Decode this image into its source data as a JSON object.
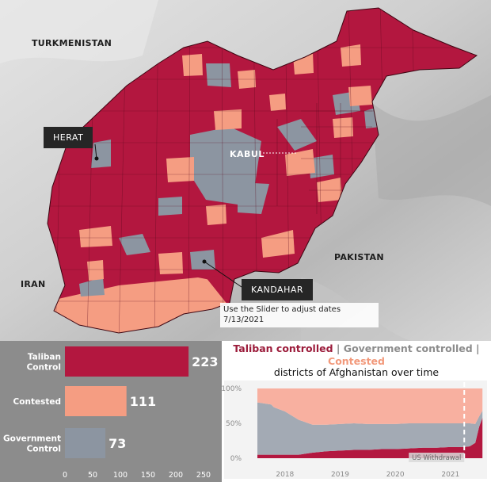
{
  "map": {
    "labels": {
      "turkmenistan": "TURKMENISTAN",
      "iran": "IRAN",
      "pakistan": "PAKISTAN",
      "kabul": "KABUL",
      "herat": "HERAT",
      "kandahar": "KANDAHAR"
    },
    "legend_colors": {
      "taliban": "#b3173f",
      "contested": "#f59d82",
      "government": "#8c95a1"
    },
    "slider_hint": "Use the Slider to adjust dates",
    "date": "7/13/2021"
  },
  "chart_data": [
    {
      "type": "bar",
      "orientation": "horizontal",
      "categories": [
        "Taliban Control",
        "Contested",
        "Government Control"
      ],
      "category_lines": [
        [
          "Taliban",
          "Control"
        ],
        [
          "Contested"
        ],
        [
          "Government",
          "Control"
        ]
      ],
      "values": [
        223,
        111,
        73
      ],
      "value_labels": [
        "223",
        "111",
        "73"
      ],
      "colors": [
        "#b3173f",
        "#f59d82",
        "#8c95a1"
      ],
      "xlim": [
        0,
        250
      ],
      "xticks": [
        "0",
        "50",
        "100",
        "150",
        "200",
        "250"
      ]
    },
    {
      "type": "area",
      "stacked": "percent",
      "title_parts": [
        "Taliban controlled",
        "|",
        "Government controlled",
        "|",
        "Contested"
      ],
      "title_colors": [
        "#9b1b3a",
        "#888888",
        "#8c8c8c",
        "#888888",
        "#f2997b"
      ],
      "subtitle": "districts of Afghanistan over time",
      "x": [
        2017.5,
        2017.75,
        2017.8,
        2018.0,
        2018.25,
        2018.5,
        2018.75,
        2019.0,
        2019.25,
        2019.5,
        2019.75,
        2020.0,
        2020.25,
        2020.5,
        2020.75,
        2021.0,
        2021.25,
        2021.35,
        2021.45,
        2021.52,
        2021.58
      ],
      "series": [
        {
          "name": "Taliban controlled",
          "color": "#b3173f",
          "values": [
            5,
            5,
            5,
            5,
            5,
            8,
            10,
            11,
            12,
            12,
            13,
            13,
            14,
            15,
            15,
            16,
            16,
            17,
            22,
            45,
            58
          ]
        },
        {
          "name": "Government controlled",
          "color": "#a3aab4",
          "values": [
            75,
            72,
            68,
            62,
            50,
            40,
            38,
            38,
            38,
            37,
            36,
            36,
            36,
            35,
            35,
            34,
            34,
            33,
            27,
            15,
            10
          ]
        },
        {
          "name": "Contested",
          "color": "#f8b0a0",
          "values": [
            20,
            23,
            27,
            33,
            45,
            52,
            52,
            51,
            50,
            51,
            51,
            51,
            50,
            50,
            50,
            50,
            50,
            50,
            51,
            40,
            32
          ]
        }
      ],
      "xlim": [
        2017.5,
        2021.62
      ],
      "ylim": [
        0,
        100
      ],
      "yticks": [
        "100%",
        "50%",
        "0%"
      ],
      "xticks": [
        "2018",
        "2019",
        "2020",
        "2021"
      ],
      "annotation": "US Withdrawal",
      "annotation_x": 2021.25
    }
  ]
}
